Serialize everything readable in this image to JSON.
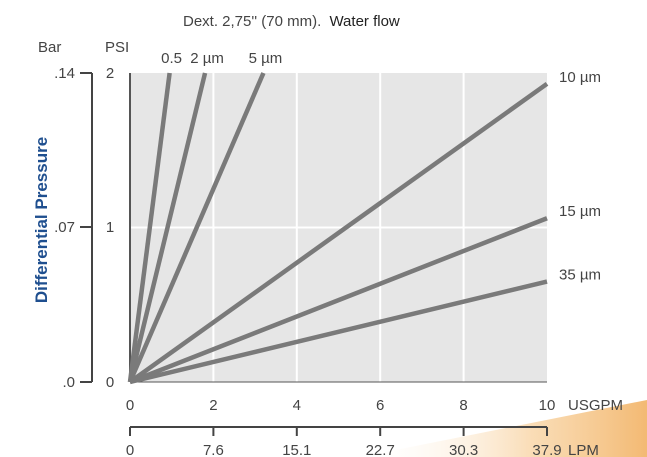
{
  "chart_data": {
    "type": "line",
    "title_prefix": "Dext. 2,75'' (70 mm).",
    "title_suffix": "Water flow",
    "ylabel": "Differential Pressure",
    "y_unit_bar": "Bar",
    "y_unit_psi": "PSI",
    "x_unit_usgpm": "USGPM",
    "x_unit_lpm": "LPM",
    "xlim": [
      0,
      10
    ],
    "ylim": [
      0,
      2
    ],
    "x_ticks": [
      "0",
      "2",
      "4",
      "6",
      "8",
      "10"
    ],
    "lpm_ticks": [
      "0",
      "7.6",
      "15.1",
      "22.7",
      "30.3",
      "37.9"
    ],
    "psi_ticks": [
      "0",
      "1",
      "2"
    ],
    "bar_ticks": [
      ".0",
      ".07",
      ".14"
    ],
    "colors": {
      "plot_bg": "#e6e6e6",
      "grid": "#ffffff",
      "line": "#7a7a7a",
      "accent": "#f5c07a"
    },
    "series": [
      {
        "name": "0.5",
        "x": [
          0,
          0.95
        ],
        "y": [
          0,
          2
        ]
      },
      {
        "name": "2 µm",
        "x": [
          0,
          1.8
        ],
        "y": [
          0,
          2
        ]
      },
      {
        "name": "5 µm",
        "x": [
          0,
          3.2
        ],
        "y": [
          0,
          2
        ]
      },
      {
        "name": "10 µm",
        "x": [
          0,
          10
        ],
        "y": [
          0,
          1.93
        ]
      },
      {
        "name": "15 µm",
        "x": [
          0,
          10
        ],
        "y": [
          0,
          1.06
        ]
      },
      {
        "name": "35 µm",
        "x": [
          0,
          10
        ],
        "y": [
          0,
          0.65
        ]
      }
    ]
  }
}
